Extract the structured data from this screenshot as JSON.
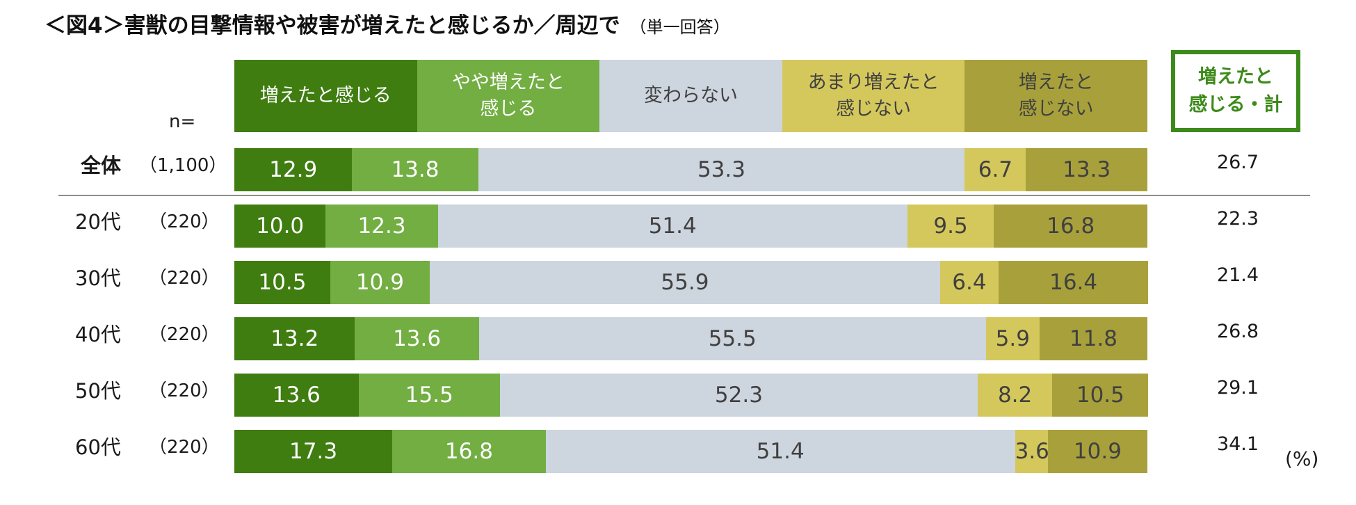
{
  "chart_data": {
    "type": "stacked-bar-horizontal",
    "title": "＜図4＞害獣の目撃情報や被害が増えたと感じるか／周辺で",
    "subtitle": "（単一回答）",
    "n_label": "n=",
    "unit_label": "(%)",
    "total_header_lines": [
      "増えたと",
      "感じる・計"
    ],
    "series": [
      {
        "name_lines": [
          "増えたと感じる"
        ],
        "color": "#3f7d10",
        "text_color": "#ffffff",
        "values": [
          12.9,
          10.0,
          10.5,
          13.2,
          13.6,
          17.3
        ]
      },
      {
        "name_lines": [
          "やや増えたと",
          "感じる"
        ],
        "color": "#72ae42",
        "text_color": "#ffffff",
        "values": [
          13.8,
          12.3,
          10.9,
          13.6,
          15.5,
          16.8
        ]
      },
      {
        "name_lines": [
          "変わらない"
        ],
        "color": "#cdd5df",
        "text_color": "#404040",
        "values": [
          53.3,
          51.4,
          55.9,
          55.5,
          52.3,
          51.4
        ]
      },
      {
        "name_lines": [
          "あまり増えたと",
          "感じない"
        ],
        "color": "#d4c85c",
        "text_color": "#404040",
        "values": [
          6.7,
          9.5,
          6.4,
          5.9,
          8.2,
          3.6
        ]
      },
      {
        "name_lines": [
          "増えたと",
          "感じない"
        ],
        "color": "#a8a13b",
        "text_color": "#404040",
        "values": [
          13.3,
          16.8,
          16.4,
          11.8,
          10.5,
          10.9
        ]
      }
    ],
    "categories": [
      {
        "label": "全体",
        "n": "（1,100）",
        "total": "26.7",
        "bold": true
      },
      {
        "label": "20代",
        "n": "（220）",
        "total": "22.3",
        "bold": false
      },
      {
        "label": "30代",
        "n": "（220）",
        "total": "21.4",
        "bold": false
      },
      {
        "label": "40代",
        "n": "（220）",
        "total": "26.8",
        "bold": false
      },
      {
        "label": "50代",
        "n": "（220）",
        "total": "29.1",
        "bold": false
      },
      {
        "label": "60代",
        "n": "（220）",
        "total": "34.1",
        "bold": false
      }
    ],
    "xlim": [
      0,
      100
    ]
  }
}
